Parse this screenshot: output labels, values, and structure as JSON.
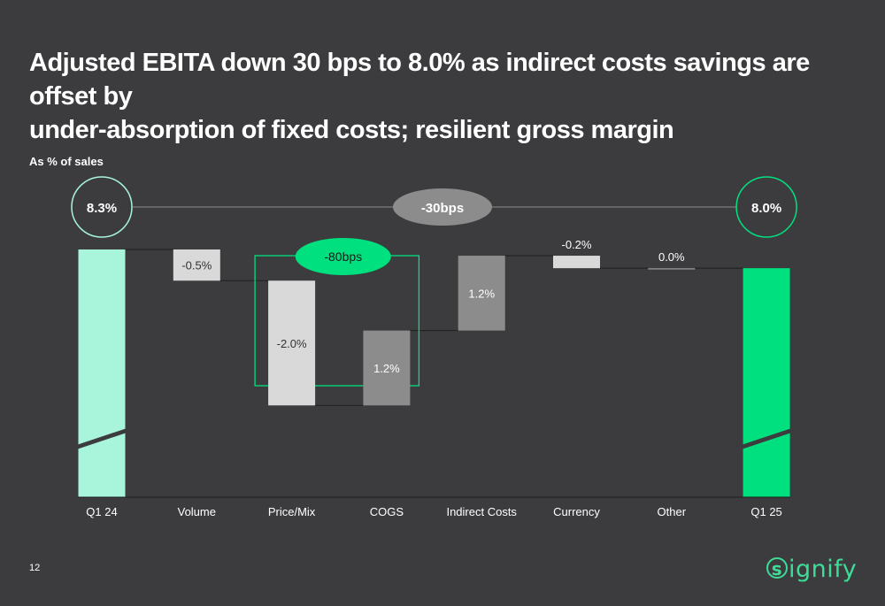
{
  "title": {
    "line1": "Adjusted EBITA down 30 bps to 8.0% as indirect costs savings are offset by",
    "line2": "under-absorption of fixed costs; resilient gross margin"
  },
  "unit_label": "As % of sales",
  "page_number": "12",
  "logo": {
    "mark": "s",
    "text": "ignify"
  },
  "colors": {
    "background": "#3c3c3f",
    "start_bar": "#a8f5dc",
    "end_bar": "#00e07f",
    "negative": "#d9d9d9",
    "positive": "#8c8c8c",
    "highlight": "#00e07f",
    "summary_badge": "#8c8c8c"
  },
  "chart_data": {
    "type": "bar",
    "subtype": "waterfall",
    "categories": [
      "Q1 24",
      "Volume",
      "Price/Mix",
      "COGS",
      "Indirect Costs",
      "Currency",
      "Other",
      "Q1 25"
    ],
    "values": [
      8.3,
      -0.5,
      -2.0,
      1.2,
      1.2,
      -0.2,
      0.0,
      8.0
    ],
    "labels": [
      "8.3%",
      "-0.5%",
      "-2.0%",
      "1.2%",
      "1.2%",
      "-0.2%",
      "0.0%",
      "8.0%"
    ],
    "kinds": [
      "total",
      "delta",
      "delta",
      "delta",
      "delta",
      "delta",
      "delta",
      "total"
    ],
    "y_axis_break": true,
    "annotations": {
      "overall_change": "-30bps",
      "gross_margin_group": {
        "label": "-80bps",
        "categories": [
          "Price/Mix",
          "COGS"
        ]
      }
    },
    "unit": "As % of sales"
  }
}
